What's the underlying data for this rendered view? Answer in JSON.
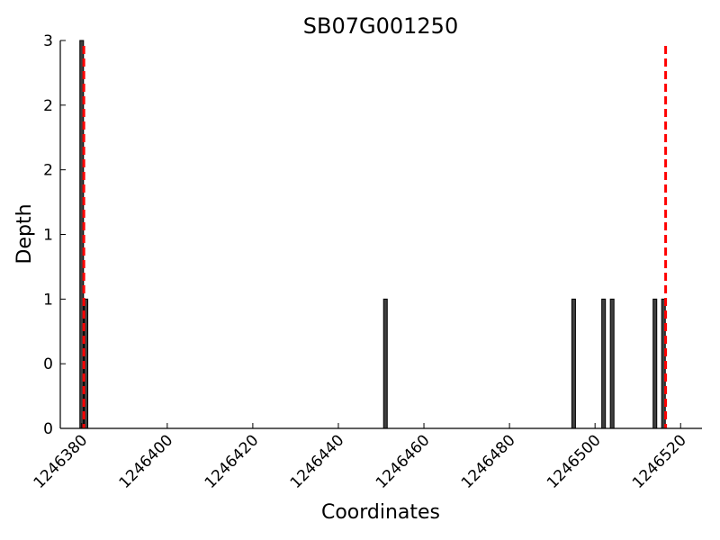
{
  "chart_data": {
    "type": "bar",
    "title": "SB07G001250",
    "xlabel": "Coordinates",
    "ylabel": "Depth",
    "xlim": [
      1246375,
      1246525
    ],
    "ylim": [
      0,
      3
    ],
    "xticks": [
      1246380,
      1246400,
      1246420,
      1246440,
      1246460,
      1246480,
      1246500,
      1246520
    ],
    "yticks": [
      {
        "value": 0,
        "label": "0"
      },
      {
        "value": 0.5,
        "label": "0"
      },
      {
        "value": 1,
        "label": "1"
      },
      {
        "value": 1.5,
        "label": "1"
      },
      {
        "value": 2,
        "label": "2"
      },
      {
        "value": 2.5,
        "label": "2"
      },
      {
        "value": 3,
        "label": "3"
      }
    ],
    "grid": false,
    "bar_color": "#404040",
    "series": [
      {
        "x": [
          1246380,
          1246381,
          1246451,
          1246495,
          1246502,
          1246504,
          1246514,
          1246516
        ],
        "values": [
          3,
          1,
          1,
          1,
          1,
          1,
          1,
          1
        ]
      }
    ],
    "reference_lines": [
      {
        "x": 1246380.5,
        "color": "#ff0000",
        "style": "dashed"
      },
      {
        "x": 1246516.5,
        "color": "#ff0000",
        "style": "dashed"
      }
    ]
  }
}
